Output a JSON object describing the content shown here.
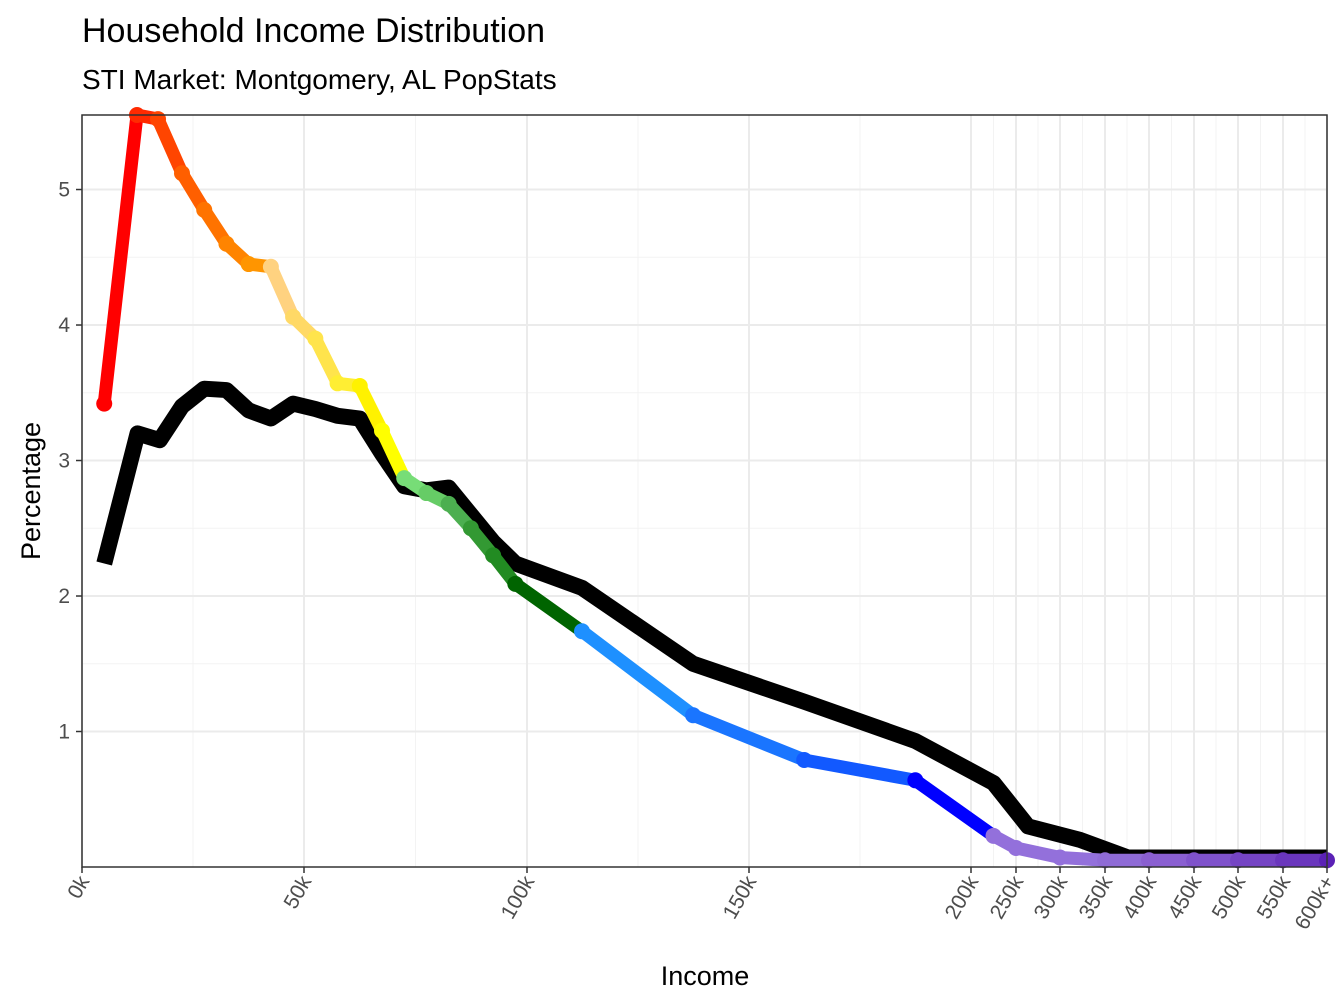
{
  "chart_data": {
    "type": "line",
    "title": "Household Income Distribution",
    "subtitle": "STI Market: Montgomery, AL PopStats",
    "xlabel": "Income",
    "ylabel": "Percentage",
    "x_tick_labels": [
      "0k",
      "50k",
      "100k",
      "150k",
      "200k",
      "250k",
      "300k",
      "350k",
      "400k",
      "450k",
      "500k",
      "550k",
      "600k+"
    ],
    "y_ticks": [
      1,
      2,
      3,
      4,
      5
    ],
    "ylim": [
      0,
      5.55
    ],
    "grid": true,
    "x": [
      "5k",
      "12.5k",
      "17.5k",
      "22.5k",
      "27.5k",
      "32.5k",
      "37.5k",
      "42.5k",
      "47.5k",
      "52.5k",
      "57.5k",
      "62.5k",
      "67.5k",
      "72.5k",
      "77.5k",
      "82.5k",
      "87.5k",
      "92.5k",
      "97.5k",
      "112.5k",
      "137.5k",
      "162.5k",
      "187.5k",
      "225k",
      "275k",
      "325k",
      "375k",
      "425k",
      "475k",
      "525k",
      "575k",
      "600k+"
    ],
    "series": [
      {
        "values": [
          3.42,
          5.55,
          5.52,
          5.12,
          4.85,
          4.6,
          4.45,
          4.43,
          4.06,
          3.9,
          3.57,
          3.55,
          3.22,
          2.87,
          2.76,
          2.68,
          2.5,
          2.3,
          2.09,
          1.74,
          1.12,
          0.79,
          0.64,
          0.23,
          0.14,
          0.07,
          0.05,
          0.05,
          0.05,
          0.05,
          0.05,
          0.05
        ],
        "colors": [
          "#ff0000",
          "#ff2a00",
          "#ff4500",
          "#ff5f00",
          "#ff7300",
          "#ff8400",
          "#ff9500",
          "#ffd280",
          "#ffd966",
          "#ffe44c",
          "#ffee33",
          "#fff200",
          "#ffff00",
          "#77dd77",
          "#66cc66",
          "#4caf50",
          "#339933",
          "#228b22",
          "#006400",
          "#1e90ff",
          "#1a75ff",
          "#1259ff",
          "#0000ff",
          "#9370db",
          "#9370db",
          "#9370db",
          "#8f6bd6",
          "#8a5fd1",
          "#7f52cb",
          "#7544c4",
          "#6a36bd",
          "#5b21b6"
        ]
      },
      {
        "color": "#000000",
        "values": [
          2.24,
          3.2,
          3.15,
          3.4,
          3.53,
          3.52,
          3.37,
          3.31,
          3.42,
          3.38,
          3.33,
          3.31,
          3.05,
          2.81,
          2.78,
          2.8,
          2.6,
          2.4,
          2.24,
          2.06,
          1.5,
          1.22,
          0.93,
          0.62,
          0.3,
          0.1,
          0.07,
          0.07,
          0.07,
          0.07,
          0.07,
          0.07
        ]
      }
    ]
  }
}
